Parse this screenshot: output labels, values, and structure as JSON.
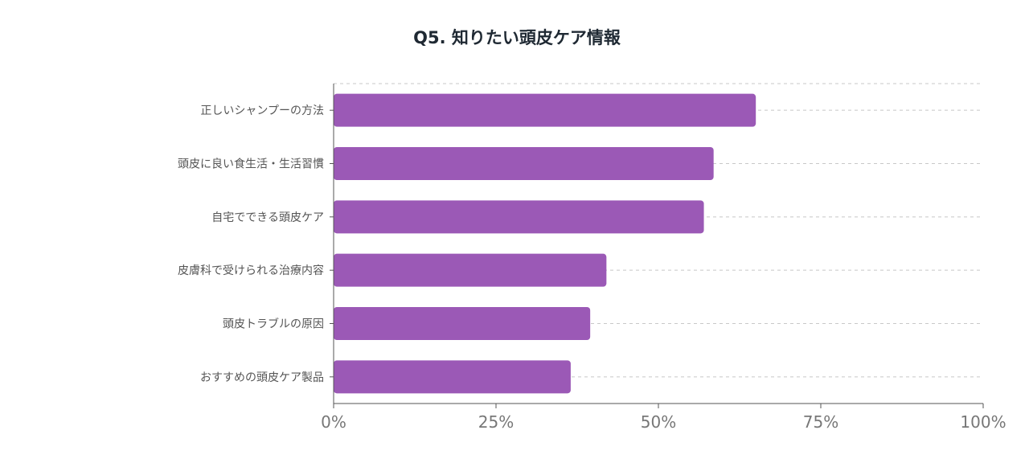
{
  "chart_data": {
    "type": "bar",
    "orientation": "horizontal",
    "title": "Q5. 知りたい頭皮ケア情報",
    "categories": [
      "正しいシャンプーの方法",
      "頭皮に良い食生活・生活習慣",
      "自宅でできる頭皮ケア",
      "皮膚科で受けられる治療内容",
      "頭皮トラブルの原因",
      "おすすめの頭皮ケア製品"
    ],
    "values": [
      65,
      58.5,
      57,
      42,
      39.5,
      36.5
    ],
    "xlim": [
      0,
      100
    ],
    "x_ticks": [
      "0%",
      "25%",
      "50%",
      "75%",
      "100%"
    ],
    "x_tick_values": [
      0,
      25,
      50,
      75,
      100
    ],
    "grid": "dashed horizontal lines at each category",
    "legend": "none",
    "bar_color": "#9b59b6",
    "axis_color": "#555555",
    "grid_color": "#c8c8c8"
  }
}
